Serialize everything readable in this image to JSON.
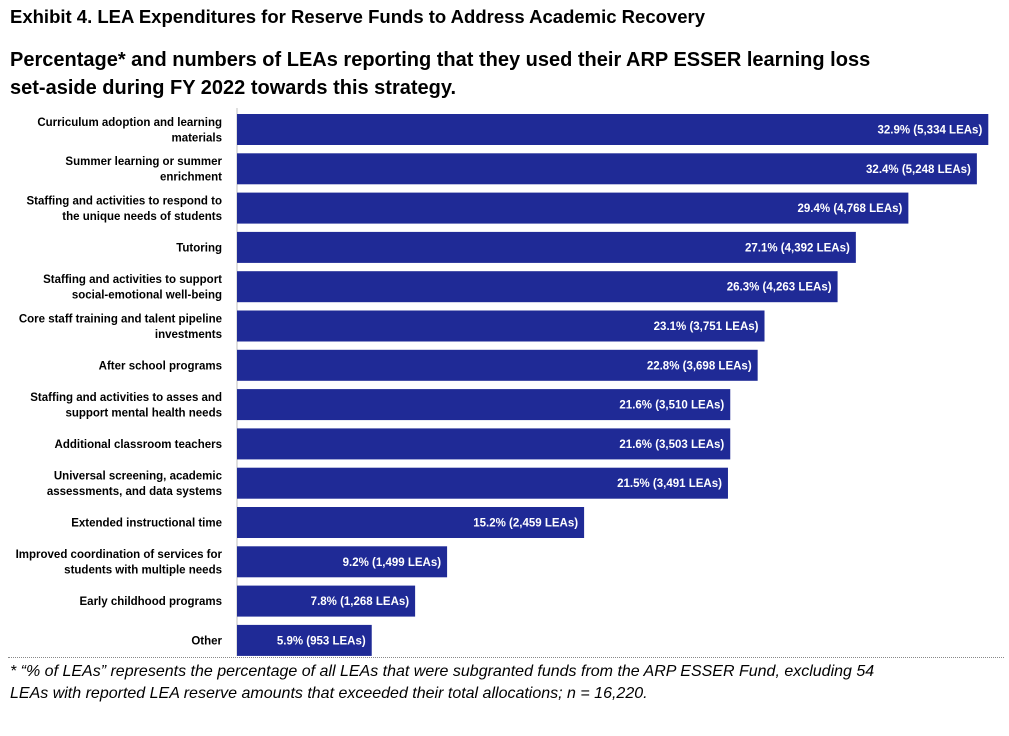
{
  "exhibit_title": "Exhibit 4. LEA Expenditures for Reserve Funds to Address Academic Recovery",
  "chart_data": {
    "type": "bar",
    "orientation": "horizontal",
    "title": "Percentage* and numbers of LEAs reporting that they used their ARP ESSER learning loss set-aside during FY 2022 towards this strategy.",
    "xlabel": "",
    "ylabel": "",
    "xlim": [
      0,
      33.5
    ],
    "grid": false,
    "legend": "none",
    "bar_color": "#1f2a96",
    "label_color": "#ffffff",
    "categories": [
      [
        "Curriculum adoption and learning",
        "materials"
      ],
      [
        "Summer learning or summer",
        "enrichment"
      ],
      [
        "Staffing and activities to respond to",
        "the unique needs of students"
      ],
      [
        "Tutoring"
      ],
      [
        "Staffing and activities to support",
        "social-emotional well-being"
      ],
      [
        "Core staff training and talent pipeline",
        "investments"
      ],
      [
        "After school programs"
      ],
      [
        "Staffing and activities to asses and",
        "support mental health needs"
      ],
      [
        "Additional classroom teachers"
      ],
      [
        "Universal screening, academic",
        "assessments, and data systems"
      ],
      [
        "Extended instructional time"
      ],
      [
        "Improved coordination of services for",
        "students with multiple needs"
      ],
      [
        "Early childhood programs"
      ],
      [
        "Other"
      ]
    ],
    "values": [
      32.9,
      32.4,
      29.4,
      27.1,
      26.3,
      23.1,
      22.8,
      21.6,
      21.6,
      21.5,
      15.2,
      9.2,
      7.8,
      5.9
    ],
    "counts": [
      5334,
      5248,
      4768,
      4392,
      4263,
      3751,
      3698,
      3510,
      3503,
      3491,
      2459,
      1499,
      1268,
      953
    ],
    "data_labels": [
      "32.9% (5,334 LEAs)",
      "32.4% (5,248 LEAs)",
      "29.4% (4,768 LEAs)",
      "27.1% (4,392 LEAs)",
      "26.3% (4,263 LEAs)",
      "23.1% (3,751 LEAs)",
      "22.8% (3,698 LEAs)",
      "21.6% (3,510 LEAs)",
      "21.6% (3,503 LEAs)",
      "21.5% (3,491 LEAs)",
      "15.2% (2,459 LEAs)",
      "9.2% (1,499 LEAs)",
      "7.8% (1,268 LEAs)",
      "5.9% (953 LEAs)"
    ]
  },
  "footnote": "* “% of LEAs” represents the percentage of all LEAs that were subgranted funds from the ARP ESSER Fund, excluding 54 LEAs with reported LEA reserve amounts that exceeded their total allocations; n = 16,220."
}
